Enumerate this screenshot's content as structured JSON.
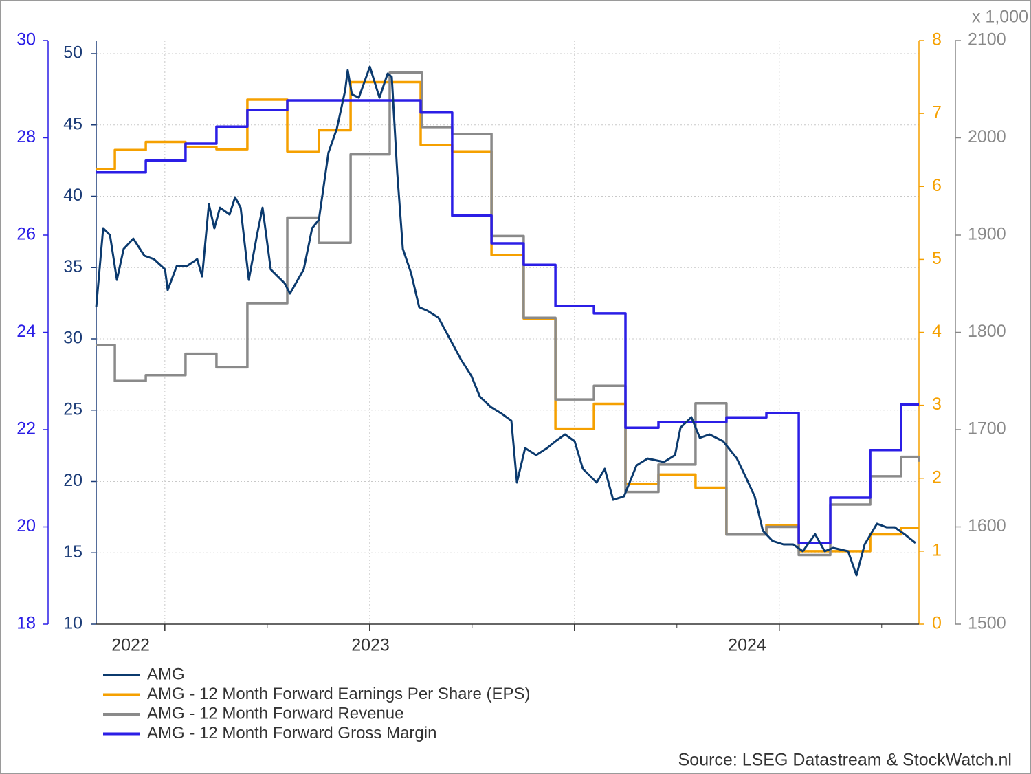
{
  "chart_data": {
    "type": "line",
    "source": "Source: LSEG Datastream & StockWatch.nl",
    "xlim": [
      2021.665,
      2025.682
    ],
    "xticks": [
      {
        "value": 2021.833,
        "label": "2022"
      },
      {
        "value": 2023.004,
        "label": "2023"
      },
      {
        "value": 2024.843,
        "label": "2024"
      }
    ],
    "xgrid": [
      2022,
      2023,
      2024,
      2025
    ],
    "xminorticks": [
      2022.5,
      2023.5,
      2024.5,
      2025.5
    ],
    "grid": true,
    "axes": [
      {
        "ylim": [
          10,
          50
        ],
        "yticks": [
          10,
          15,
          20,
          25,
          30,
          35,
          40,
          45,
          50
        ],
        "color": "#1d3d78"
      },
      {
        "ylim": [
          18,
          30
        ],
        "yticks": [
          18,
          20,
          22,
          24,
          26,
          28,
          30
        ],
        "color": "#2b1ee6"
      },
      {
        "ylim": [
          0,
          8
        ],
        "yticks": [
          0,
          1,
          2,
          3,
          4,
          5,
          6,
          7,
          8
        ],
        "color": "#f5a000"
      },
      {
        "ylim": [
          1500,
          2100
        ],
        "yticks": [
          1500,
          1600,
          1700,
          1800,
          1900,
          2000,
          2100
        ],
        "color": "#888888",
        "unit_label": "x 1,000"
      }
    ],
    "series": [
      {
        "name": "AMG",
        "color": "#0b3a6e",
        "axis": 0,
        "step": false,
        "x": [
          2021.665,
          2021.699,
          2021.732,
          2021.766,
          2021.799,
          2021.846,
          2021.9,
          2021.947,
          2022.001,
          2022.014,
          2022.058,
          2022.108,
          2022.158,
          2022.182,
          2022.215,
          2022.242,
          2022.269,
          2022.316,
          2022.343,
          2022.37,
          2022.41,
          2022.45,
          2022.477,
          2022.517,
          2022.585,
          2022.611,
          2022.678,
          2022.719,
          2022.752,
          2022.799,
          2022.84,
          2022.88,
          2022.893,
          2022.913,
          2022.947,
          2023.001,
          2023.048,
          2023.088,
          2023.108,
          2023.135,
          2023.162,
          2023.202,
          2023.242,
          2023.283,
          2023.336,
          2023.39,
          2023.444,
          2023.497,
          2023.538,
          2023.591,
          2023.645,
          2023.692,
          2023.719,
          2023.759,
          2023.813,
          2023.866,
          2023.907,
          2023.954,
          2024.001,
          2024.041,
          2024.108,
          2024.148,
          2024.189,
          2024.242,
          2024.303,
          2024.357,
          2024.437,
          2024.491,
          2024.518,
          2024.571,
          2024.612,
          2024.659,
          2024.726,
          2024.793,
          2024.833,
          2024.88,
          2024.92,
          2024.967,
          2025.021,
          2025.068,
          2025.115,
          2025.175,
          2025.222,
          2025.263,
          2025.336,
          2025.377,
          2025.417,
          2025.477,
          2025.524,
          2025.564,
          2025.611,
          2025.665
        ],
        "values": [
          32.22,
          37.76,
          37.28,
          34.14,
          36.31,
          37.03,
          35.83,
          35.59,
          34.87,
          33.42,
          35.11,
          35.11,
          35.59,
          34.38,
          39.44,
          37.76,
          39.2,
          38.72,
          39.93,
          39.2,
          34.14,
          37.28,
          39.2,
          34.87,
          33.9,
          33.18,
          34.87,
          37.76,
          38.34,
          43.06,
          44.74,
          47.4,
          48.84,
          47.15,
          46.91,
          49.08,
          46.91,
          48.6,
          48.36,
          41.61,
          36.31,
          34.63,
          32.22,
          31.97,
          31.49,
          30.05,
          28.6,
          27.4,
          25.95,
          25.23,
          24.75,
          24.26,
          19.93,
          22.34,
          21.85,
          22.34,
          22.82,
          23.3,
          22.82,
          20.89,
          19.93,
          20.89,
          18.72,
          18.96,
          21.13,
          21.61,
          21.37,
          21.85,
          23.78,
          24.51,
          23.06,
          23.3,
          22.82,
          21.61,
          20.41,
          18.96,
          16.55,
          15.83,
          15.59,
          15.59,
          15.11,
          16.31,
          15.11,
          15.35,
          15.11,
          13.42,
          15.59,
          17.04,
          16.79,
          16.79,
          16.31,
          15.69
        ]
      },
      {
        "name": "AMG - 12 Month Forward Earnings Per Share (EPS)",
        "color": "#f5a000",
        "axis": 2,
        "step": true,
        "x": [
          2021.665,
          2021.756,
          2021.907,
          2022.101,
          2022.252,
          2022.403,
          2022.598,
          2022.752,
          2022.907,
          2023.249,
          2023.403,
          2023.595,
          2023.752,
          2023.907,
          2024.095,
          2024.249,
          2024.41,
          2024.591,
          2024.742,
          2024.937,
          2025.095,
          2025.444,
          2025.595,
          2025.682
        ],
        "values": [
          6.24,
          6.5,
          6.61,
          6.54,
          6.51,
          7.19,
          6.48,
          6.77,
          7.43,
          6.57,
          6.48,
          5.06,
          4.19,
          2.68,
          3.02,
          1.92,
          2.05,
          1.87,
          1.23,
          1.36,
          1.0,
          1.23,
          1.32,
          1.32
        ]
      },
      {
        "name": "AMG - 12 Month Forward Revenue",
        "color": "#8a8a8a",
        "axis": 3,
        "step": true,
        "x": [
          2021.665,
          2021.756,
          2021.907,
          2022.101,
          2022.252,
          2022.403,
          2022.598,
          2022.752,
          2022.907,
          2023.098,
          2023.256,
          2023.403,
          2023.595,
          2023.752,
          2023.907,
          2024.095,
          2024.249,
          2024.41,
          2024.591,
          2024.742,
          2024.937,
          2025.095,
          2025.249,
          2025.444,
          2025.595,
          2025.682
        ],
        "values": [
          1787,
          1750,
          1756,
          1778,
          1764,
          1830,
          1918,
          1892,
          1983,
          2067,
          2011,
          2004,
          1899,
          1815,
          1731,
          1745,
          1636,
          1664,
          1727,
          1592,
          1600,
          1571,
          1623,
          1652,
          1672,
          1667
        ]
      },
      {
        "name": "AMG - 12 Month Forward Gross Margin",
        "color": "#2b1ee6",
        "axis": 1,
        "step": true,
        "x": [
          2021.665,
          2021.907,
          2022.101,
          2022.252,
          2022.403,
          2022.598,
          2023.249,
          2023.403,
          2023.595,
          2023.752,
          2023.907,
          2024.095,
          2024.249,
          2024.41,
          2024.742,
          2024.937,
          2025.095,
          2025.249,
          2025.444,
          2025.595,
          2025.682
        ],
        "values": [
          27.29,
          27.53,
          27.88,
          28.23,
          28.57,
          28.77,
          28.52,
          26.4,
          25.83,
          25.39,
          24.54,
          24.39,
          22.04,
          22.16,
          22.25,
          22.34,
          19.67,
          20.6,
          21.58,
          22.52,
          22.52
        ]
      }
    ]
  }
}
